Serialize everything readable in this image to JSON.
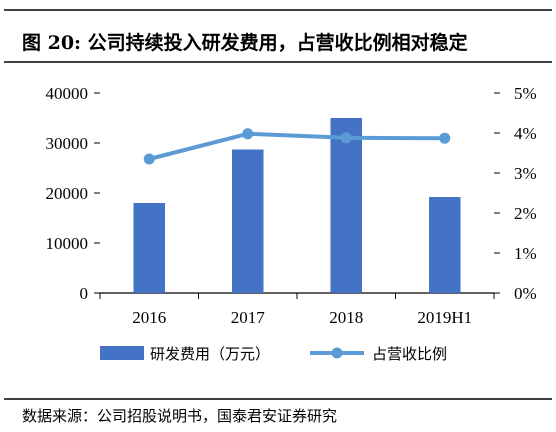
{
  "title": "图 20: 公司持续投入研发费用，占营收比例相对稳定",
  "source": "数据来源：公司招股说明书，国泰君安证券研究",
  "colors": {
    "bar": "#4472C4",
    "line": "#5B9BD5",
    "border": "#000000"
  },
  "chart_data": {
    "type": "bar",
    "categories": [
      "2016",
      "2017",
      "2018",
      "2019H1"
    ],
    "series": [
      {
        "name": "研发费用（万元）",
        "type": "bar",
        "axis": "left",
        "values": [
          18000,
          28700,
          35000,
          19200
        ]
      },
      {
        "name": "占营收比例",
        "type": "line",
        "axis": "right",
        "values": [
          3.35,
          3.98,
          3.88,
          3.87
        ]
      }
    ],
    "y_left": {
      "min": 0,
      "max": 40000,
      "ticks": [
        "0",
        "10000",
        "20000",
        "30000",
        "40000"
      ]
    },
    "y_right": {
      "min": 0,
      "max": 5,
      "ticks": [
        "0%",
        "1%",
        "2%",
        "3%",
        "4%",
        "5%"
      ]
    },
    "grid": false,
    "legend": "bottom"
  }
}
